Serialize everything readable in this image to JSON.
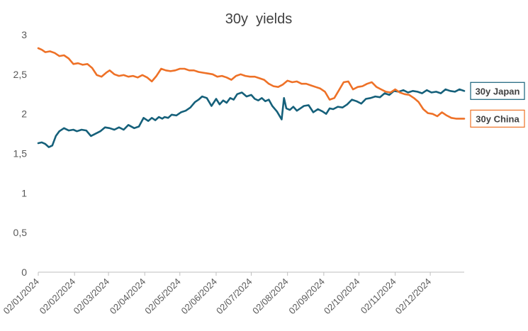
{
  "chart_data": {
    "type": "line",
    "title": "30y  yields",
    "xlabel": "",
    "ylabel": "",
    "ylim": [
      0,
      3
    ],
    "y_ticks": [
      "0",
      "0,5",
      "1",
      "1,5",
      "2",
      "2,5",
      "3"
    ],
    "x_range": [
      "2024-01-02",
      "2024-12-31"
    ],
    "x_ticks": [
      {
        "date": "2024-01-02",
        "label": "02/01/2024"
      },
      {
        "date": "2024-02-02",
        "label": "02/02/2024"
      },
      {
        "date": "2024-03-02",
        "label": "02/03/2024"
      },
      {
        "date": "2024-04-02",
        "label": "02/04/2024"
      },
      {
        "date": "2024-05-02",
        "label": "02/05/2024"
      },
      {
        "date": "2024-06-02",
        "label": "02/06/2024"
      },
      {
        "date": "2024-07-02",
        "label": "02/07/2024"
      },
      {
        "date": "2024-08-02",
        "label": "02/08/2024"
      },
      {
        "date": "2024-09-02",
        "label": "02/09/2024"
      },
      {
        "date": "2024-10-02",
        "label": "02/10/2024"
      },
      {
        "date": "2024-11-02",
        "label": "02/11/2024"
      },
      {
        "date": "2024-12-02",
        "label": "02/12/2024"
      }
    ],
    "grid": false,
    "legend": "end-of-line labels, right",
    "series": [
      {
        "name": "30y Japan",
        "color": "#15607a",
        "x": [
          "2024-01-02",
          "2024-01-05",
          "2024-01-08",
          "2024-01-11",
          "2024-01-14",
          "2024-01-17",
          "2024-01-20",
          "2024-01-24",
          "2024-01-28",
          "2024-02-01",
          "2024-02-04",
          "2024-02-08",
          "2024-02-12",
          "2024-02-16",
          "2024-02-20",
          "2024-02-24",
          "2024-02-28",
          "2024-03-03",
          "2024-03-07",
          "2024-03-11",
          "2024-03-15",
          "2024-03-19",
          "2024-03-24",
          "2024-03-28",
          "2024-04-01",
          "2024-04-05",
          "2024-04-08",
          "2024-04-11",
          "2024-04-14",
          "2024-04-17",
          "2024-04-19",
          "2024-04-22",
          "2024-04-25",
          "2024-04-29",
          "2024-05-03",
          "2024-05-07",
          "2024-05-11",
          "2024-05-15",
          "2024-05-18",
          "2024-05-21",
          "2024-05-25",
          "2024-05-29",
          "2024-06-02",
          "2024-06-05",
          "2024-06-08",
          "2024-06-11",
          "2024-06-14",
          "2024-06-17",
          "2024-06-20",
          "2024-06-24",
          "2024-06-28",
          "2024-07-02",
          "2024-07-05",
          "2024-07-08",
          "2024-07-11",
          "2024-07-14",
          "2024-07-17",
          "2024-07-20",
          "2024-07-24",
          "2024-07-28",
          "2024-07-30",
          "2024-08-01",
          "2024-08-04",
          "2024-08-07",
          "2024-08-10",
          "2024-08-13",
          "2024-08-16",
          "2024-08-20",
          "2024-08-24",
          "2024-08-28",
          "2024-09-01",
          "2024-09-04",
          "2024-09-07",
          "2024-09-10",
          "2024-09-14",
          "2024-09-18",
          "2024-09-22",
          "2024-09-26",
          "2024-09-30",
          "2024-10-04",
          "2024-10-08",
          "2024-10-12",
          "2024-10-16",
          "2024-10-20",
          "2024-10-24",
          "2024-10-28",
          "2024-11-01",
          "2024-11-05",
          "2024-11-09",
          "2024-11-13",
          "2024-11-17",
          "2024-11-21",
          "2024-11-25",
          "2024-11-29",
          "2024-12-03",
          "2024-12-07",
          "2024-12-11",
          "2024-12-15",
          "2024-12-19",
          "2024-12-23",
          "2024-12-27",
          "2024-12-31"
        ],
        "values": [
          1.63,
          1.64,
          1.62,
          1.58,
          1.6,
          1.72,
          1.78,
          1.82,
          1.79,
          1.8,
          1.78,
          1.8,
          1.79,
          1.72,
          1.75,
          1.78,
          1.83,
          1.82,
          1.8,
          1.83,
          1.8,
          1.86,
          1.82,
          1.84,
          1.95,
          1.91,
          1.95,
          1.92,
          1.96,
          1.94,
          1.96,
          1.95,
          1.99,
          1.98,
          2.02,
          2.04,
          2.08,
          2.15,
          2.18,
          2.22,
          2.2,
          2.1,
          2.19,
          2.12,
          2.17,
          2.14,
          2.2,
          2.18,
          2.25,
          2.27,
          2.22,
          2.24,
          2.19,
          2.17,
          2.2,
          2.16,
          2.18,
          2.1,
          2.03,
          1.93,
          2.2,
          2.07,
          2.05,
          2.09,
          2.04,
          2.07,
          2.1,
          2.11,
          2.02,
          2.06,
          2.03,
          2.0,
          2.07,
          2.06,
          2.09,
          2.08,
          2.12,
          2.18,
          2.16,
          2.13,
          2.19,
          2.2,
          2.22,
          2.21,
          2.26,
          2.24,
          2.29,
          2.28,
          2.3,
          2.27,
          2.29,
          2.28,
          2.26,
          2.3,
          2.27,
          2.28,
          2.26,
          2.31,
          2.29,
          2.28,
          2.31,
          2.29
        ]
      },
      {
        "name": "30y China",
        "color": "#ee7127",
        "x": [
          "2024-01-02",
          "2024-01-05",
          "2024-01-08",
          "2024-01-12",
          "2024-01-16",
          "2024-01-20",
          "2024-01-24",
          "2024-01-28",
          "2024-02-01",
          "2024-02-05",
          "2024-02-09",
          "2024-02-13",
          "2024-02-17",
          "2024-02-21",
          "2024-02-25",
          "2024-02-29",
          "2024-03-03",
          "2024-03-07",
          "2024-03-11",
          "2024-03-15",
          "2024-03-19",
          "2024-03-23",
          "2024-03-27",
          "2024-03-31",
          "2024-04-04",
          "2024-04-08",
          "2024-04-12",
          "2024-04-16",
          "2024-04-20",
          "2024-04-24",
          "2024-04-28",
          "2024-05-02",
          "2024-05-06",
          "2024-05-10",
          "2024-05-14",
          "2024-05-18",
          "2024-05-22",
          "2024-05-26",
          "2024-05-30",
          "2024-06-03",
          "2024-06-07",
          "2024-06-11",
          "2024-06-15",
          "2024-06-19",
          "2024-06-23",
          "2024-06-27",
          "2024-07-01",
          "2024-07-05",
          "2024-07-09",
          "2024-07-13",
          "2024-07-17",
          "2024-07-21",
          "2024-07-25",
          "2024-07-29",
          "2024-08-02",
          "2024-08-06",
          "2024-08-10",
          "2024-08-14",
          "2024-08-18",
          "2024-08-22",
          "2024-08-26",
          "2024-08-30",
          "2024-09-03",
          "2024-09-07",
          "2024-09-11",
          "2024-09-15",
          "2024-09-19",
          "2024-09-23",
          "2024-09-27",
          "2024-10-01",
          "2024-10-05",
          "2024-10-09",
          "2024-10-13",
          "2024-10-17",
          "2024-10-21",
          "2024-10-25",
          "2024-10-29",
          "2024-11-02",
          "2024-11-06",
          "2024-11-10",
          "2024-11-14",
          "2024-11-18",
          "2024-11-22",
          "2024-11-26",
          "2024-11-30",
          "2024-12-04",
          "2024-12-08",
          "2024-12-12",
          "2024-12-16",
          "2024-12-20",
          "2024-12-24",
          "2024-12-28",
          "2024-12-31"
        ],
        "values": [
          2.83,
          2.81,
          2.78,
          2.79,
          2.77,
          2.73,
          2.74,
          2.7,
          2.63,
          2.64,
          2.62,
          2.63,
          2.58,
          2.49,
          2.47,
          2.52,
          2.55,
          2.5,
          2.48,
          2.49,
          2.47,
          2.48,
          2.46,
          2.49,
          2.46,
          2.41,
          2.48,
          2.57,
          2.55,
          2.54,
          2.55,
          2.57,
          2.57,
          2.55,
          2.55,
          2.53,
          2.52,
          2.51,
          2.5,
          2.47,
          2.48,
          2.46,
          2.43,
          2.48,
          2.5,
          2.48,
          2.47,
          2.47,
          2.45,
          2.43,
          2.38,
          2.35,
          2.34,
          2.37,
          2.42,
          2.4,
          2.41,
          2.38,
          2.38,
          2.36,
          2.34,
          2.32,
          2.28,
          2.18,
          2.2,
          2.3,
          2.4,
          2.41,
          2.31,
          2.34,
          2.35,
          2.38,
          2.4,
          2.34,
          2.31,
          2.28,
          2.27,
          2.31,
          2.27,
          2.25,
          2.24,
          2.2,
          2.15,
          2.06,
          2.01,
          2.0,
          1.97,
          2.02,
          1.98,
          1.95,
          1.94,
          1.94,
          1.94
        ]
      }
    ]
  }
}
